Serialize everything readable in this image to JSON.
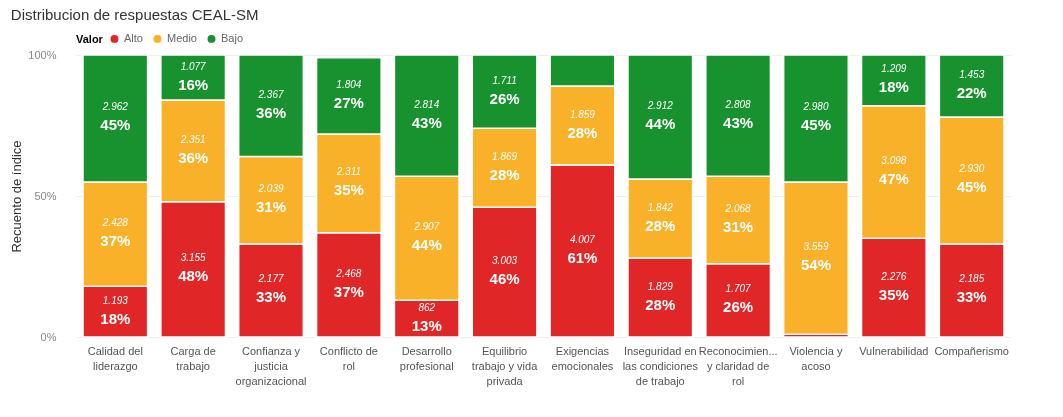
{
  "chart_data": {
    "type": "bar",
    "stacked": true,
    "title": "Distribucion de respuestas CEAL-SM",
    "ylabel": "Recuento de índice",
    "legend_title": "Valor",
    "legend": "top left",
    "grid": "y",
    "categories": [
      "Calidad del liderazgo",
      "Carga de trabajo",
      "Confianza y justicia organizacional",
      "Conflicto de rol",
      "Desarrollo profesional",
      "Equilibrio trabajo y vida privada",
      "Exigencias emocionales",
      "Inseguridad en las condiciones de trabajo",
      "Reconocimien... y claridad de rol",
      "Violencia y acoso",
      "Vulnerabilidad",
      "Compañerismo"
    ],
    "ylim": [
      0,
      100
    ],
    "yticks": [
      {
        "value": 0,
        "label": "0%"
      },
      {
        "value": 50,
        "label": "50%"
      },
      {
        "value": 100,
        "label": "100%"
      }
    ],
    "series": [
      {
        "name": "Alto",
        "color": "#e02626",
        "values": [
          18,
          48,
          33,
          37,
          13,
          46,
          61,
          28,
          26,
          1,
          35,
          33
        ],
        "value_labels": [
          "1.193\n18%",
          "3.155\n48%",
          "2.177\n33%",
          "2.468\n37%",
          "862\n13%",
          "3.003\n46%",
          "4.007\n61%",
          "1.829\n28%",
          "1.707\n26%",
          null,
          "2.276\n35%",
          "2.185\n33%"
        ]
      },
      {
        "name": "Medio",
        "color": "#f8b128",
        "values": [
          37,
          36,
          31,
          35,
          44,
          28,
          28,
          28,
          31,
          54,
          47,
          45
        ],
        "value_labels": [
          "2.428\n37%",
          "2.351\n36%",
          "2.039\n31%",
          "2.311\n35%",
          "2.907\n44%",
          "1.869\n28%",
          "1.859\n28%",
          "1.842\n28%",
          "2.068\n31%",
          "3.559\n54%",
          "3.098\n47%",
          "2.930\n45%"
        ]
      },
      {
        "name": "Bajo",
        "color": "#17922f",
        "values": [
          45,
          16,
          36,
          27,
          43,
          26,
          11,
          44,
          43,
          45,
          18,
          22
        ],
        "value_labels": [
          "2.962\n45%",
          "1.077\n16%",
          "2.367\n36%",
          "1.804\n27%",
          "2.814\n43%",
          "1.711\n26%",
          null,
          "2.912\n44%",
          "2.808\n43%",
          "2.980\n45%",
          "1.209\n18%",
          "1.453\n22%"
        ]
      }
    ]
  }
}
